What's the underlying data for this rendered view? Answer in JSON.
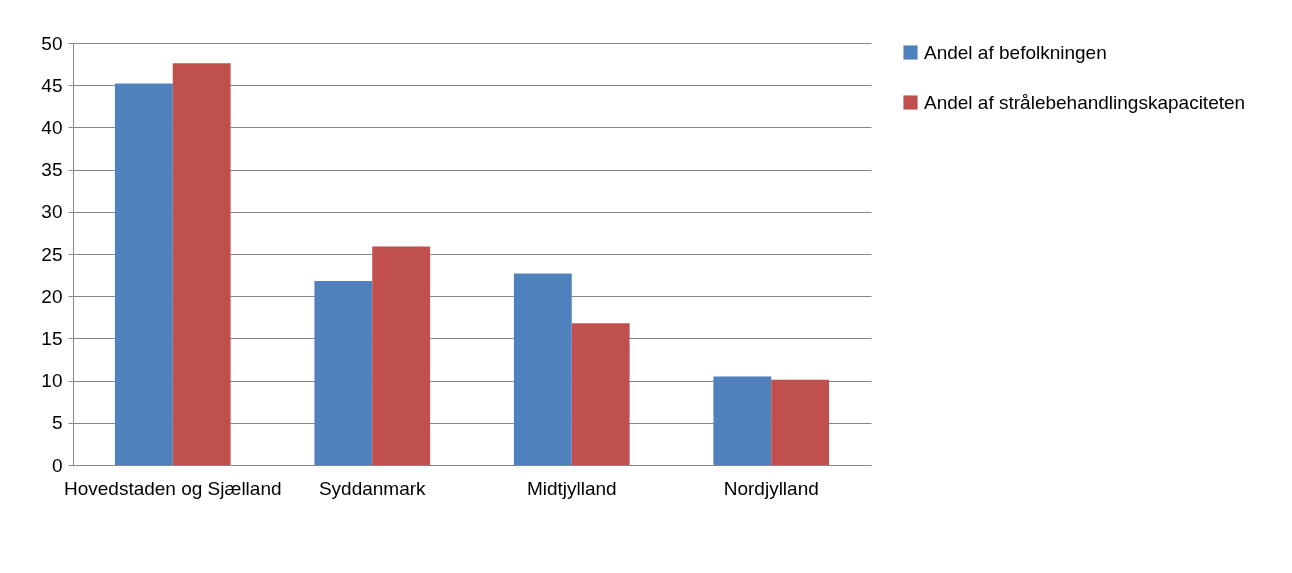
{
  "chart_data": {
    "type": "bar",
    "categories": [
      "Hovedstaden og Sjælland",
      "Syddanmark",
      "Midtjylland",
      "Nordjylland"
    ],
    "series": [
      {
        "name": "Andel af befolkningen",
        "color": "#4f81bd",
        "values": [
          45.2,
          21.8,
          22.7,
          10.5
        ]
      },
      {
        "name": "Andel af strålebehandlingskapaciteten",
        "color": "#c0504d",
        "values": [
          47.6,
          25.9,
          16.8,
          10.1
        ]
      }
    ],
    "ylim": [
      0,
      50
    ],
    "yticks": [
      0,
      5,
      10,
      15,
      20,
      25,
      30,
      35,
      40,
      45,
      50
    ],
    "grid": "y",
    "legend": "right"
  }
}
